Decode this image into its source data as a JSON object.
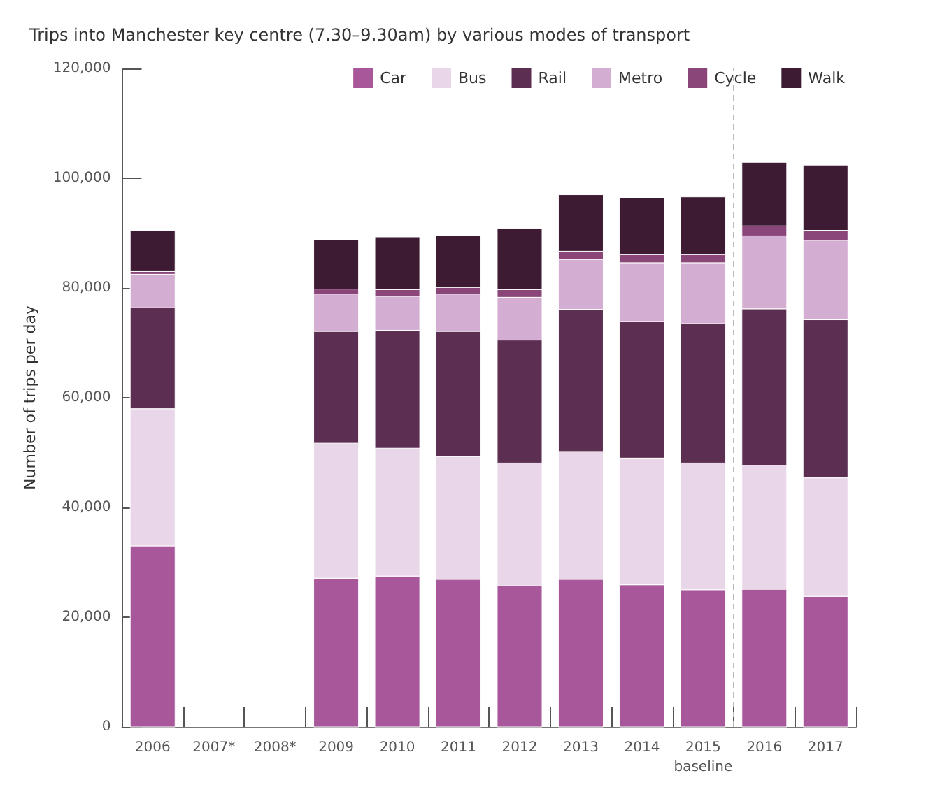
{
  "chart_data": {
    "type": "bar",
    "stacked": true,
    "title": "Trips into Manchester key centre (7.30–9.30am) by various modes of transport",
    "ylabel": "Number of trips per day",
    "x": [
      2006,
      2007,
      2008,
      2009,
      2010,
      2011,
      2012,
      2013,
      2014,
      2015,
      2016,
      2017
    ],
    "series": [
      {
        "name": "Car",
        "color": "#a8579b",
        "values": [
          33000,
          null,
          null,
          27100,
          27500,
          26900,
          25700,
          26900,
          25900,
          25000,
          25100,
          23800
        ]
      },
      {
        "name": "Bus",
        "color": "#e9d7e9",
        "values": [
          25000,
          null,
          null,
          24600,
          23300,
          22400,
          22400,
          23300,
          23100,
          23100,
          22600,
          21600
        ]
      },
      {
        "name": "Rail",
        "color": "#5b2e52",
        "values": [
          18400,
          null,
          null,
          20400,
          21500,
          22800,
          22400,
          25900,
          24900,
          25400,
          28500,
          28800
        ]
      },
      {
        "name": "Metro",
        "color": "#d4aed2",
        "values": [
          6100,
          null,
          null,
          6800,
          6200,
          6800,
          7800,
          9100,
          10700,
          11100,
          13300,
          14500
        ]
      },
      {
        "name": "Cycle",
        "color": "#8a4579",
        "values": [
          500,
          null,
          null,
          900,
          1200,
          1200,
          1400,
          1500,
          1500,
          1500,
          1800,
          1800
        ]
      },
      {
        "name": "Walk",
        "color": "#3d1b33",
        "values": [
          7500,
          null,
          null,
          9000,
          9600,
          9400,
          11200,
          10300,
          10300,
          10500,
          11600,
          11900
        ]
      }
    ],
    "xlim": [
      2005.5,
      2017.5
    ],
    "xticks": [
      2006,
      {
        "value": 2006.5,
        "label": null
      },
      {
        "value": 2007,
        "label": "2007*"
      },
      {
        "value": 2007.5,
        "label": null
      },
      {
        "value": 2008,
        "label": "2008*"
      },
      {
        "value": 2008.5,
        "label": null
      },
      2009,
      {
        "value": 2009.5,
        "label": null
      },
      2010,
      {
        "value": 2010.5,
        "label": null
      },
      2011,
      {
        "value": 2011.5,
        "label": null
      },
      2012,
      {
        "value": 2012.5,
        "label": null
      },
      2013,
      {
        "value": 2013.5,
        "label": null
      },
      2014,
      {
        "value": 2014.5,
        "label": null
      },
      {
        "value": 2015,
        "label": "2015\nbaseline"
      },
      {
        "value": 2015.5,
        "label": null
      },
      2016,
      {
        "value": 2016.5,
        "label": null
      },
      2017,
      {
        "value": 2017.5,
        "label": null
      }
    ],
    "ylim": [
      0,
      120000
    ],
    "yticks": [
      0,
      {
        "value": 20000,
        "label": "20,000"
      },
      {
        "value": 40000,
        "label": "40,000"
      },
      {
        "value": 60000,
        "label": "60,000"
      },
      {
        "value": 80000,
        "label": "80,000"
      },
      {
        "value": 100000,
        "label": "100,000"
      },
      {
        "value": 120000,
        "label": "120,000"
      }
    ],
    "ref_lines": [
      {
        "axis": "x",
        "value": 2015.5,
        "color": "#bbbbbb",
        "line_style": "dashed"
      }
    ],
    "grid": false,
    "legend": "top right"
  }
}
